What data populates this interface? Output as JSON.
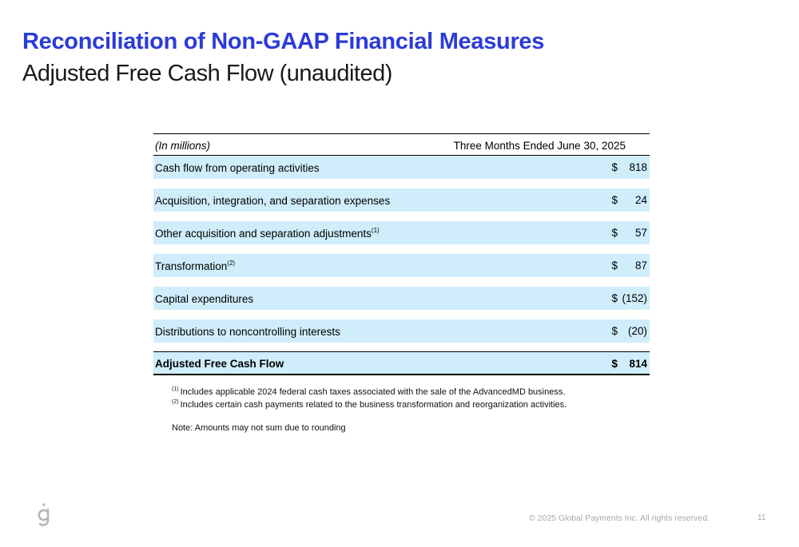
{
  "title": "Reconciliation of Non-GAAP Financial Measures",
  "subtitle": "Adjusted Free Cash Flow (unaudited)",
  "table": {
    "header_label": "(In millions)",
    "header_period": "Three Months Ended June 30, 2025",
    "rows": [
      {
        "label": "Cash flow from operating activities",
        "sup": "",
        "currency": "$",
        "value": "818"
      },
      {
        "label": "Acquisition, integration, and separation expenses",
        "sup": "",
        "currency": "$",
        "value": "24"
      },
      {
        "label": "Other acquisition and separation adjustments",
        "sup": "(1)",
        "currency": "$",
        "value": "57"
      },
      {
        "label": "Transformation",
        "sup": "(2)",
        "currency": "$",
        "value": "87"
      },
      {
        "label": "Capital expenditures",
        "sup": "",
        "currency": "$",
        "value": "(152)"
      },
      {
        "label": "Distributions to noncontrolling interests",
        "sup": "",
        "currency": "$",
        "value": "(20)"
      }
    ],
    "total": {
      "label": "Adjusted Free Cash Flow",
      "currency": "$",
      "value": "814"
    }
  },
  "notes": [
    {
      "sup": "(1)",
      "text": "Includes applicable 2024 federal cash taxes associated with the sale of the AdvancedMD business."
    },
    {
      "sup": "(2)",
      "text": "Includes certain cash payments related to the business transformation and reorganization activities."
    }
  ],
  "note_rounding": "Note: Amounts may not sum due to rounding",
  "footer": "© 2025 Global Payments Inc. All rights reserved.",
  "page_number": "11",
  "colors": {
    "title": "#2b3bd9",
    "row_fill": "#cfedfb",
    "footer": "#a8a8a8"
  }
}
